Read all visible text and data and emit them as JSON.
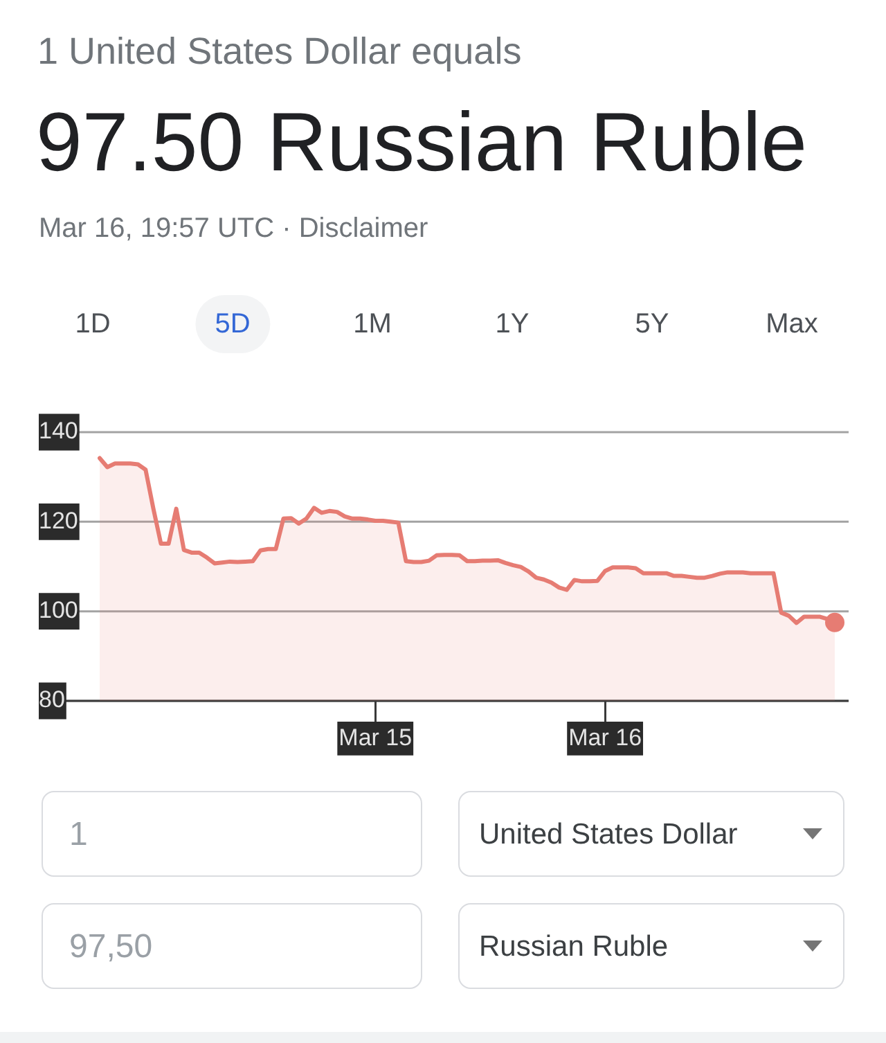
{
  "chart_data": {
    "type": "area",
    "title": "1 United States Dollar equals",
    "subtitle": "97.50 Russian Ruble",
    "annotations": [
      "Mar 16, 19:57 UTC · Disclaimer",
      "1D",
      "5D",
      "1M",
      "1Y",
      "5Y",
      "Max",
      "1",
      "United States Dollar",
      "97,50",
      "Russian Ruble"
    ],
    "categories": [
      null,
      null,
      null,
      null,
      null,
      null,
      null,
      null,
      null,
      null,
      null,
      null,
      null,
      null,
      null,
      null,
      null,
      null,
      null,
      null,
      null,
      null,
      null,
      null,
      null,
      null,
      null,
      null,
      null,
      null,
      null,
      null,
      null,
      null,
      null,
      null,
      "Mar 15",
      null,
      null,
      null,
      null,
      null,
      null,
      null,
      null,
      null,
      null,
      null,
      null,
      null,
      null,
      null,
      null,
      null,
      null,
      null,
      null,
      null,
      null,
      null,
      null,
      null,
      null,
      null,
      null,
      null,
      "Mar 16",
      null,
      null,
      null,
      null,
      null,
      null,
      null,
      null,
      null,
      null,
      null,
      null,
      null,
      null,
      null,
      null,
      null,
      null,
      null,
      null,
      null,
      null,
      null,
      null,
      null,
      null,
      null,
      null,
      null,
      null
    ],
    "series": [
      {
        "color": "#e67c73",
        "values": [
          134.2,
          132.2,
          133.0,
          133.0,
          133.0,
          132.8,
          131.6,
          123.0,
          115.1,
          115.1,
          122.9,
          113.7,
          113.1,
          113.1,
          112.0,
          110.7,
          110.9,
          111.1,
          111.0,
          111.1,
          111.2,
          113.6,
          113.9,
          113.9,
          120.7,
          120.8,
          119.6,
          120.7,
          123.1,
          122.0,
          122.4,
          122.2,
          121.2,
          120.7,
          120.7,
          120.5,
          120.2,
          120.2,
          120.0,
          119.8,
          111.2,
          111.0,
          111.0,
          111.3,
          112.5,
          112.6,
          112.6,
          112.5,
          111.2,
          111.2,
          111.3,
          111.3,
          111.4,
          110.8,
          110.3,
          109.9,
          108.9,
          107.5,
          107.1,
          106.4,
          105.3,
          104.8,
          107.0,
          106.7,
          106.7,
          106.8,
          109.0,
          109.8,
          109.8,
          109.8,
          109.6,
          108.5,
          108.5,
          108.5,
          108.5,
          107.9,
          107.9,
          107.7,
          107.5,
          107.5,
          107.9,
          108.4,
          108.7,
          108.7,
          108.7,
          108.5,
          108.5,
          108.5,
          108.5,
          99.7,
          99.0,
          97.4,
          98.8,
          98.8,
          98.8,
          98.3,
          97.5
        ]
      },
      {
        "type": "scatter",
        "color": "#e67c73",
        "values": [
          null,
          null,
          null,
          null,
          null,
          null,
          null,
          null,
          null,
          null,
          null,
          null,
          null,
          null,
          null,
          null,
          null,
          null,
          null,
          null,
          null,
          null,
          null,
          null,
          null,
          null,
          null,
          null,
          null,
          null,
          null,
          null,
          null,
          null,
          null,
          null,
          null,
          null,
          null,
          null,
          null,
          null,
          null,
          null,
          null,
          null,
          null,
          null,
          null,
          null,
          null,
          null,
          null,
          null,
          null,
          null,
          null,
          null,
          null,
          null,
          null,
          null,
          null,
          null,
          null,
          null,
          null,
          null,
          null,
          null,
          null,
          null,
          null,
          null,
          null,
          null,
          null,
          null,
          null,
          null,
          null,
          null,
          null,
          null,
          null,
          null,
          null,
          null,
          null,
          null,
          null,
          null,
          null,
          null,
          null,
          null,
          97.5
        ]
      }
    ],
    "ylim": [
      80,
      140
    ],
    "yticks": [
      80,
      100,
      120,
      140
    ],
    "grid": "y"
  }
}
